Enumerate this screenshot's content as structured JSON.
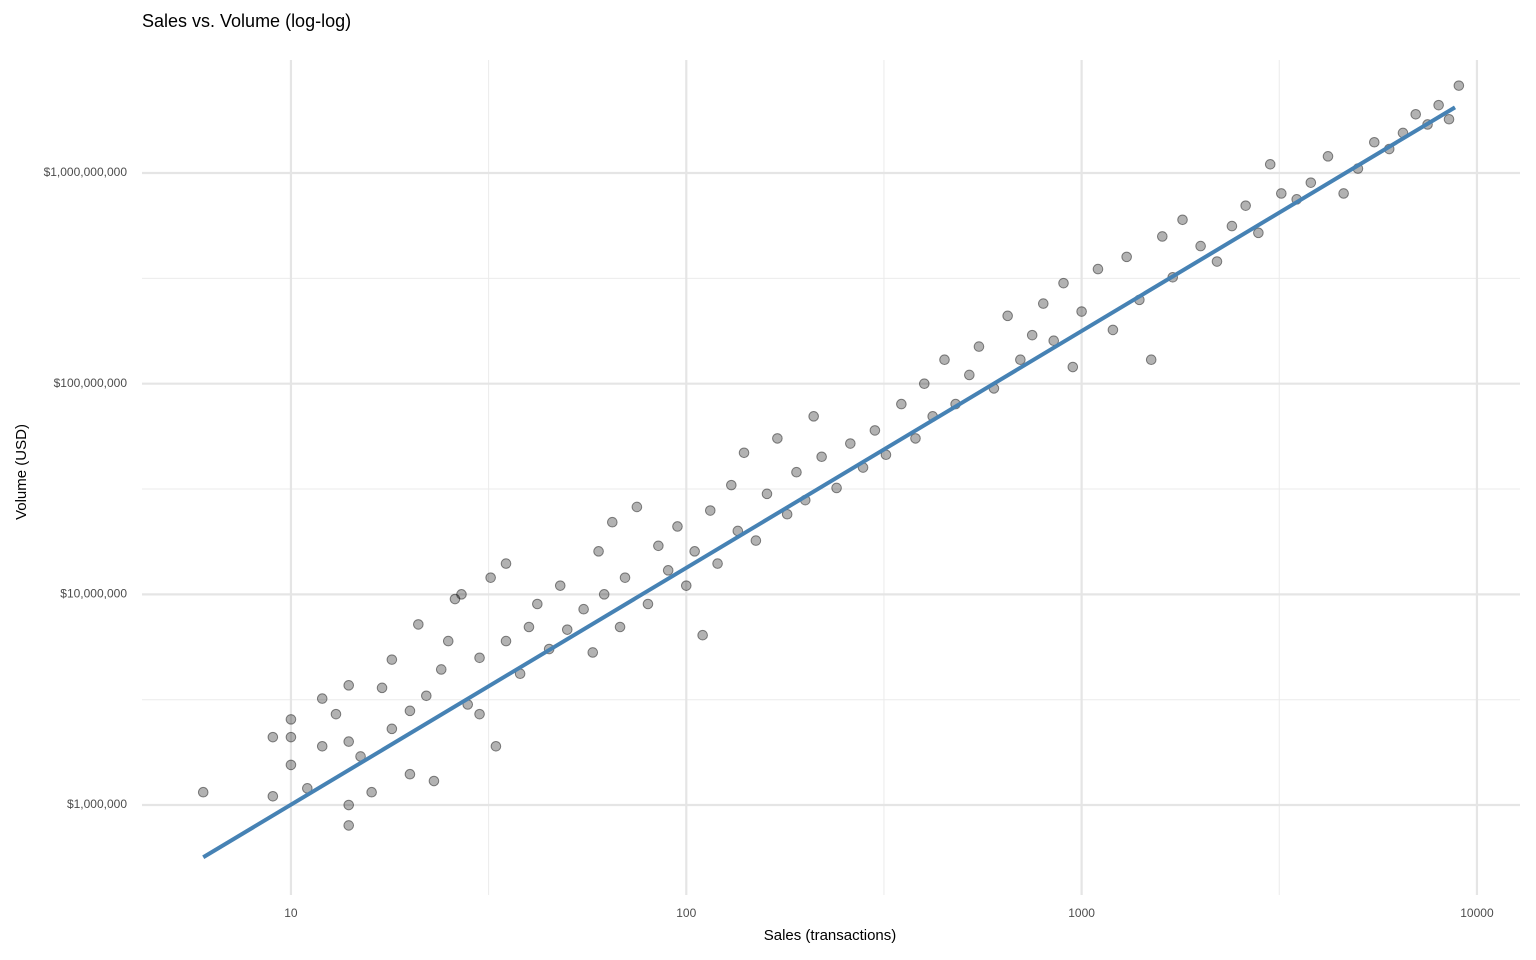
{
  "chart_data": {
    "type": "scatter",
    "title": "Sales vs. Volume (log-log)",
    "x_label": "Sales (transactions)",
    "y_label": "Volume (USD)",
    "xlog": true,
    "ylog": true,
    "grid": true,
    "minor_grid": true,
    "xlim": [
      4.2,
      12850
    ],
    "ylim": [
      374000,
      3440000000
    ],
    "xticks": [
      10,
      100,
      1000,
      10000
    ],
    "yticks": [
      {
        "value": 1000000,
        "label": "$1,000,000"
      },
      {
        "value": 10000000,
        "label": "$10,000,000"
      },
      {
        "value": 100000000,
        "label": "$100,000,000"
      },
      {
        "value": 1000000000,
        "label": "$1,000,000,000"
      }
    ],
    "color": "#000000",
    "point_alpha": 0.3,
    "x": [
      6,
      9,
      9,
      10,
      10,
      10,
      11,
      12,
      12,
      13,
      14,
      14,
      14,
      14,
      15,
      16,
      17,
      18,
      18,
      20,
      20,
      21,
      22,
      23,
      24,
      25,
      26,
      27,
      28,
      30,
      30,
      32,
      33,
      35,
      35,
      38,
      40,
      42,
      45,
      48,
      50,
      55,
      58,
      60,
      62,
      65,
      68,
      70,
      75,
      80,
      85,
      90,
      95,
      100,
      105,
      110,
      115,
      120,
      130,
      135,
      140,
      150,
      160,
      170,
      180,
      190,
      200,
      210,
      220,
      240,
      260,
      280,
      300,
      320,
      350,
      380,
      400,
      420,
      450,
      480,
      520,
      550,
      600,
      650,
      700,
      750,
      800,
      850,
      900,
      950,
      1000,
      1100,
      1200,
      1300,
      1400,
      1500,
      1600,
      1700,
      1800,
      2000,
      2200,
      2400,
      2600,
      2800,
      3000,
      3200,
      3500,
      3800,
      4200,
      4600,
      5000,
      5500,
      6000,
      6500,
      7000,
      7500,
      8000,
      8500,
      9000
    ],
    "values": [
      1150000,
      1100000,
      2100000,
      2550000,
      1550000,
      2100000,
      1200000,
      1900000,
      3200000,
      2700000,
      800000,
      1000000,
      3700000,
      2000000,
      1700000,
      1150000,
      3600000,
      4900000,
      2300000,
      2800000,
      1400000,
      7200000,
      3300000,
      1300000,
      4400000,
      6000000,
      9500000,
      10000000,
      3000000,
      5000000,
      2700000,
      12000000,
      1900000,
      14000000,
      6000000,
      4200000,
      7000000,
      9000000,
      5500000,
      11000000,
      6800000,
      8500000,
      5300000,
      16000000,
      10000000,
      22000000,
      7000000,
      12000000,
      26000000,
      9000000,
      17000000,
      13000000,
      21000000,
      11000000,
      16000000,
      6400000,
      25000000,
      14000000,
      33000000,
      20000000,
      47000000,
      18000000,
      30000000,
      55000000,
      24000000,
      38000000,
      28000000,
      70000000,
      45000000,
      32000000,
      52000000,
      40000000,
      60000000,
      46000000,
      80000000,
      55000000,
      100000000,
      70000000,
      130000000,
      80000000,
      110000000,
      150000000,
      95000000,
      210000000,
      130000000,
      170000000,
      240000000,
      160000000,
      300000000,
      120000000,
      220000000,
      350000000,
      180000000,
      400000000,
      250000000,
      130000000,
      500000000,
      320000000,
      600000000,
      450000000,
      380000000,
      560000000,
      700000000,
      520000000,
      1100000000,
      800000000,
      750000000,
      900000000,
      1200000000,
      800000000,
      1050000000,
      1400000000,
      1300000000,
      1550000000,
      1900000000,
      1700000000,
      2100000000,
      1800000000,
      2600000000
    ],
    "fit": {
      "x": [
        6,
        8800
      ],
      "values": [
        565000,
        2050000000
      ],
      "color": "#4682b4"
    }
  }
}
